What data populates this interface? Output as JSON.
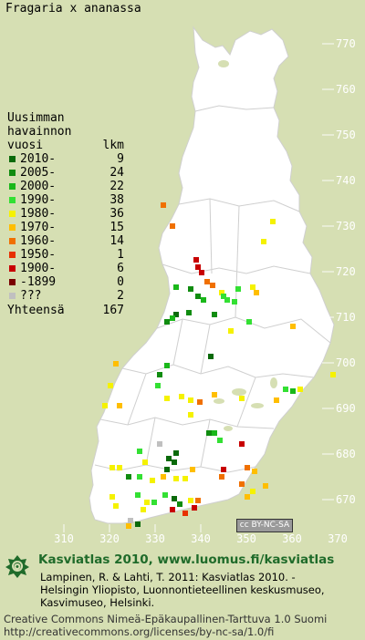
{
  "species": "Fragaria x ananassa",
  "legend": {
    "title_lines": [
      "Uusimman",
      "havainnon",
      "vuosi"
    ],
    "count_header": "lkm",
    "rows": [
      {
        "label": "2010-",
        "count": "9",
        "color": "#0a6a0a"
      },
      {
        "label": "2005-",
        "count": "24",
        "color": "#108c10"
      },
      {
        "label": "2000-",
        "count": "22",
        "color": "#1ab81a"
      },
      {
        "label": "1990-",
        "count": "38",
        "color": "#33e033"
      },
      {
        "label": "1980-",
        "count": "36",
        "color": "#f5f200"
      },
      {
        "label": "1970-",
        "count": "15",
        "color": "#ffbe00"
      },
      {
        "label": "1960-",
        "count": "14",
        "color": "#f07000"
      },
      {
        "label": "1950-",
        "count": "1",
        "color": "#e83000"
      },
      {
        "label": "1900-",
        "count": "6",
        "color": "#c80000"
      },
      {
        "label": "-1899",
        "count": "0",
        "color": "#7a0000"
      },
      {
        "label": "???",
        "count": "2",
        "color": "#c0c0c0"
      }
    ],
    "total_label": "Yhteensä",
    "total_count": "167"
  },
  "axis": {
    "y_ticks": [
      "770",
      "760",
      "750",
      "740",
      "730",
      "720",
      "710",
      "700",
      "690",
      "680",
      "670"
    ],
    "x_ticks": [
      "310",
      "320",
      "330",
      "340",
      "350",
      "360",
      "370"
    ]
  },
  "license_badge": "cc BY-NC-SA",
  "footer": {
    "site": "Kasviatlas 2010, www.luomus.fi/kasviatlas",
    "citation": [
      "Lampinen, R. & Lahti, T. 2011: Kasviatlas 2010. -",
      "Helsingin Yliopisto, Luonnontieteellinen keskusmuseo,",
      "Kasvimuseo, Helsinki."
    ],
    "license_lines": [
      "Creative Commons Nimeä-Epäkaupallinen-Tarttuva 1.0 Suomi",
      "http://creativecommons.org/licenses/by-nc-sa/1.0/fi"
    ]
  }
}
